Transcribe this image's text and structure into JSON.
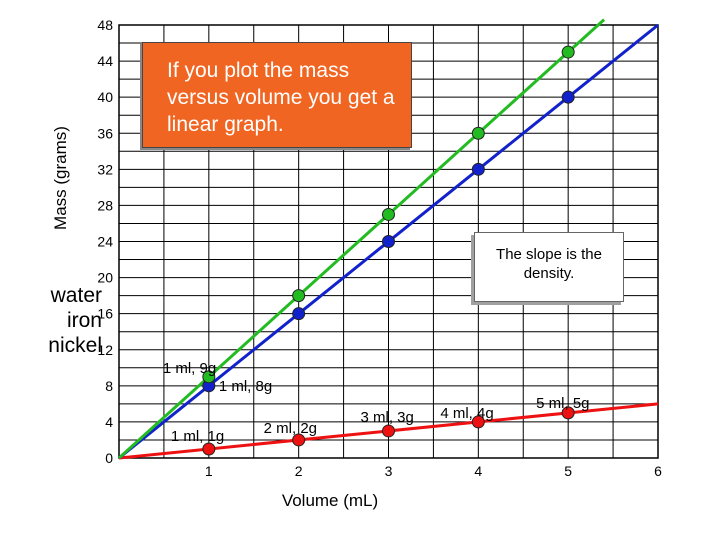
{
  "chart_data": {
    "type": "line",
    "xlabel": "Volume (mL)",
    "ylabel": "Mass (grams)",
    "xlim": [
      0,
      6
    ],
    "ylim": [
      0,
      48
    ],
    "x_ticks": [
      1,
      2,
      3,
      4,
      5,
      6
    ],
    "y_ticks": [
      0,
      4,
      8,
      12,
      16,
      20,
      24,
      28,
      32,
      36,
      40,
      44,
      48
    ],
    "grid": true,
    "series": [
      {
        "name": "water",
        "color": "#ee1111",
        "x": [
          1,
          2,
          3,
          4,
          5
        ],
        "y": [
          1,
          2,
          3,
          4,
          5
        ],
        "line_from": [
          0,
          0
        ],
        "line_to": [
          6,
          6
        ]
      },
      {
        "name": "iron",
        "color": "#1122cc",
        "x": [
          1,
          2,
          3,
          4,
          5
        ],
        "y": [
          8,
          16,
          24,
          32,
          40
        ],
        "line_from": [
          0,
          0
        ],
        "line_to": [
          6,
          48
        ]
      },
      {
        "name": "nickel",
        "color": "#22bb22",
        "x": [
          1,
          2,
          3,
          4,
          5
        ],
        "y": [
          9,
          18,
          27,
          36,
          45
        ],
        "line_from": [
          0,
          0
        ],
        "line_to": [
          5.4,
          48.6
        ]
      }
    ],
    "point_labels": [
      {
        "text": "1 ml, 1g",
        "x": 1,
        "y": 1
      },
      {
        "text": "2 ml, 2g",
        "x": 2,
        "y": 2
      },
      {
        "text": "3 ml, 3g",
        "x": 3,
        "y": 3
      },
      {
        "text": "4 ml, 4g",
        "x": 4,
        "y": 4
      },
      {
        "text": "5 ml, 5g",
        "x": 5,
        "y": 5
      },
      {
        "text": "1 ml, 8g",
        "x": 1,
        "y": 8
      },
      {
        "text": "1 ml, 9g",
        "x": 1,
        "y": 9
      }
    ],
    "annotations": {
      "callout_main": "If you plot the mass versus volume you get a linear graph.",
      "callout_slope": "The slope is the density."
    },
    "legend_labels": [
      "water",
      "iron",
      "nickel"
    ]
  },
  "colors": {
    "water": "#ee1111",
    "iron": "#1122cc",
    "nickel": "#22bb22",
    "callout_main_bg": "#f06522"
  }
}
